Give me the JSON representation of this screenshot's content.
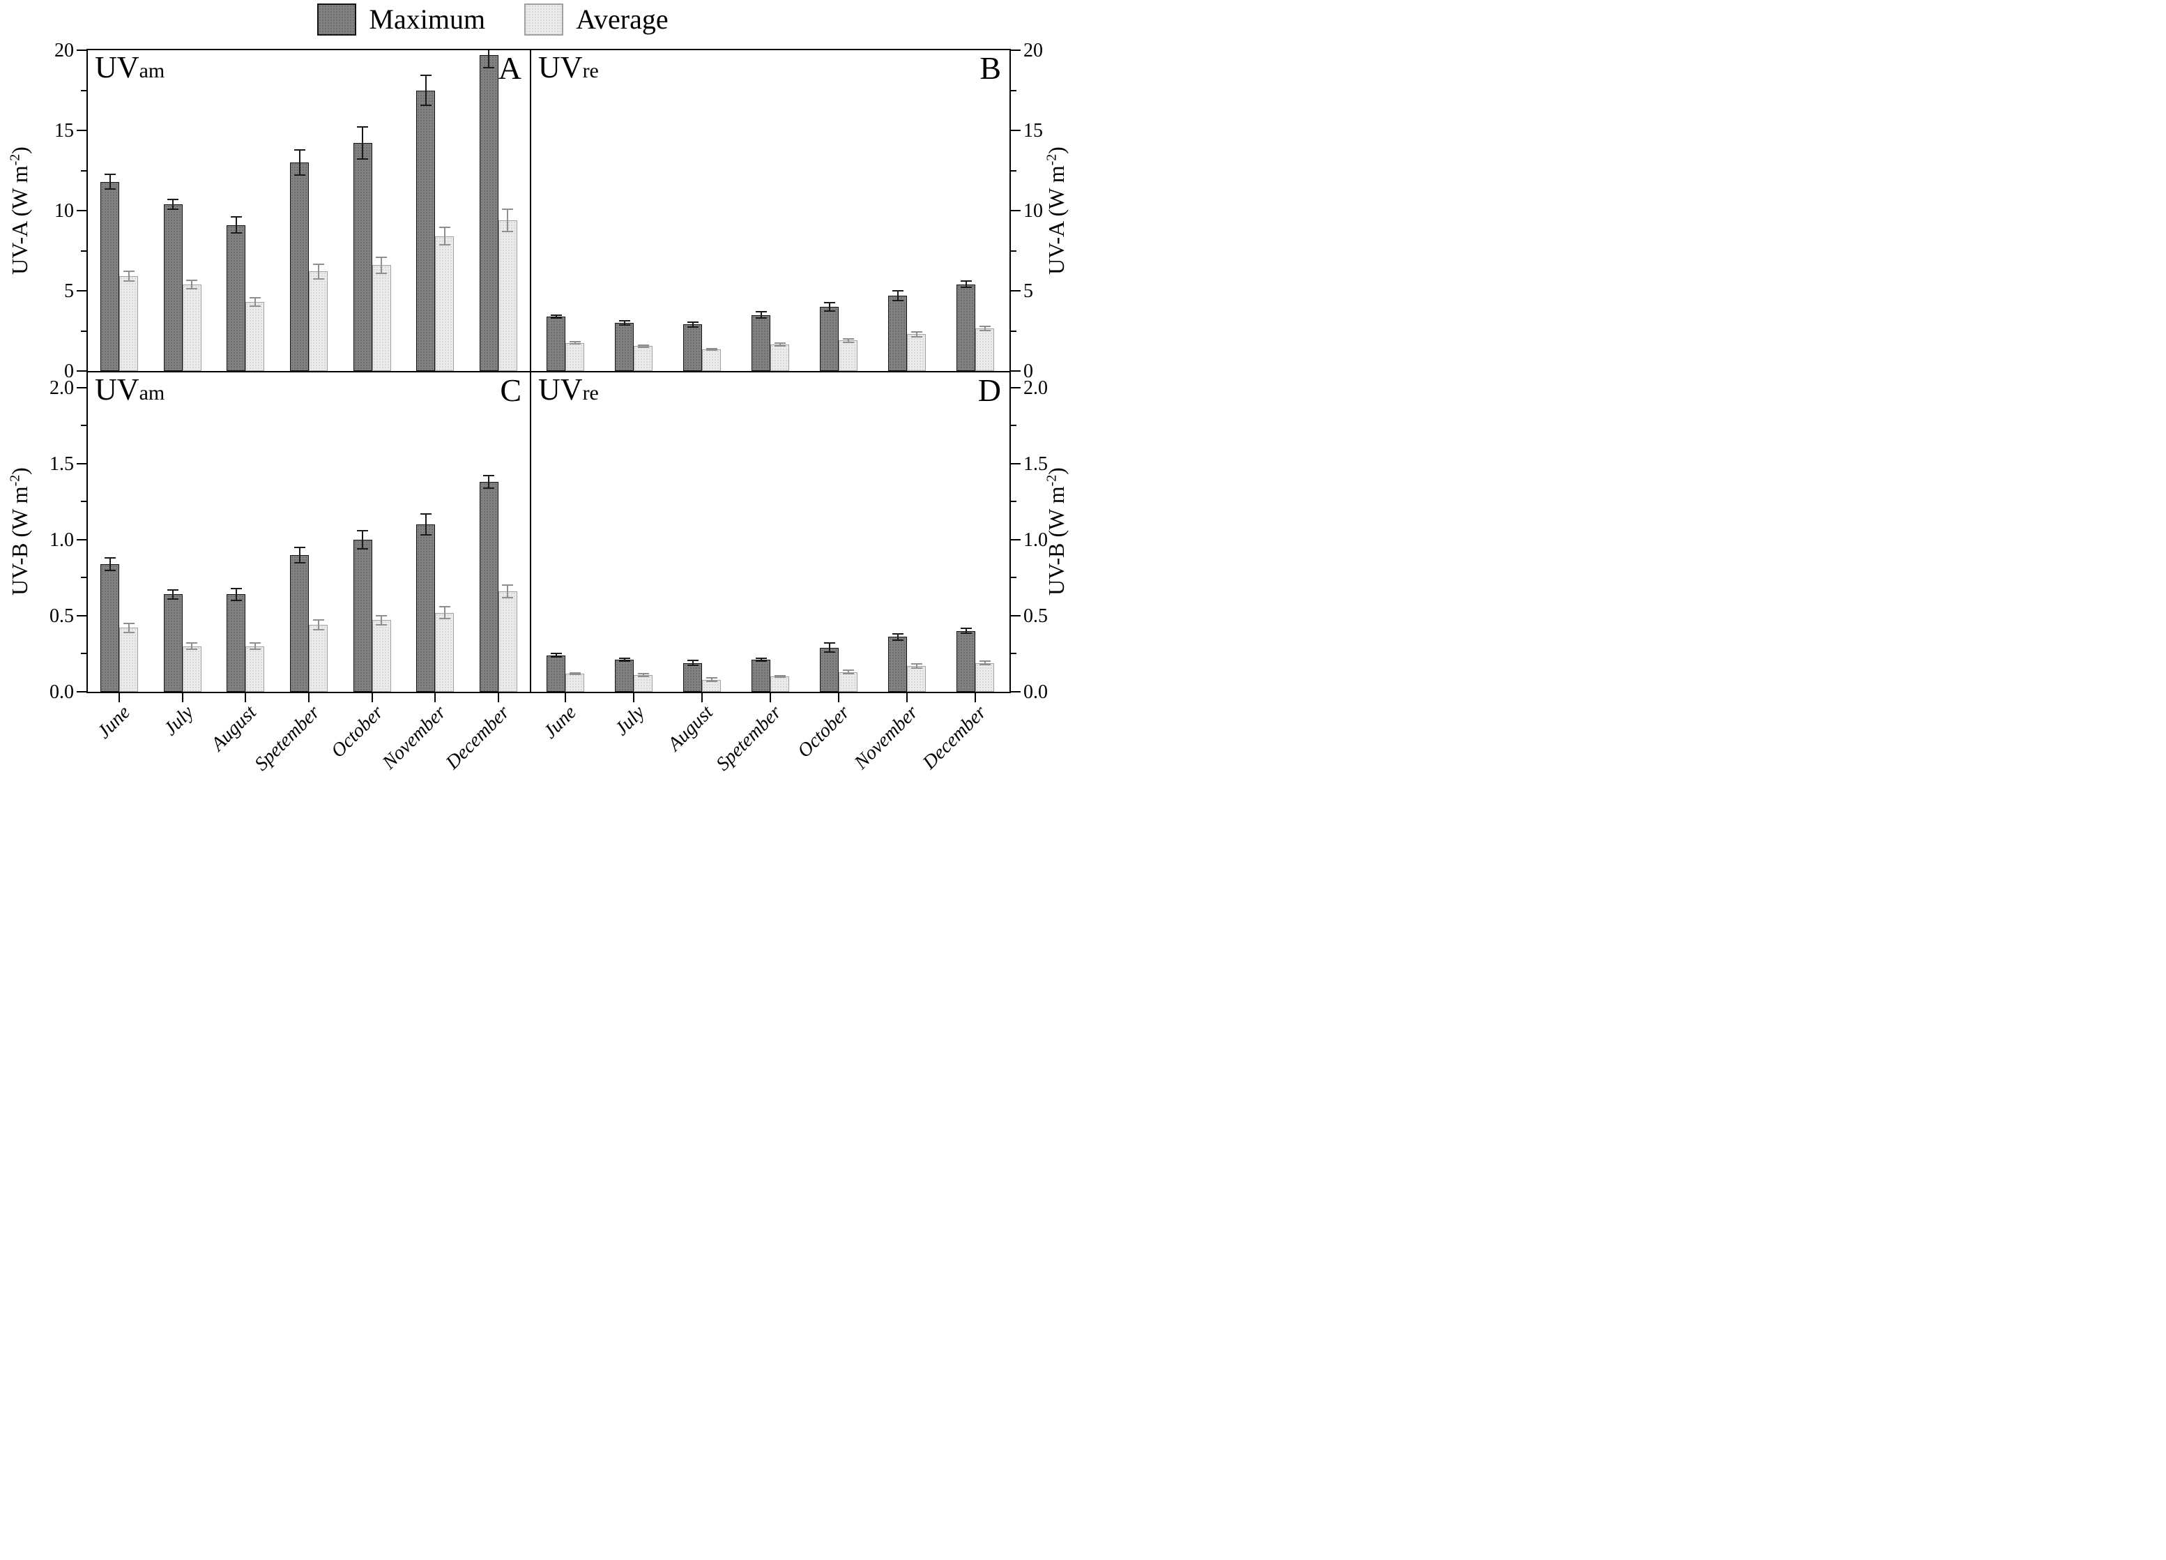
{
  "legend": {
    "items": [
      {
        "label": "Maximum",
        "swatch": "dark-gray"
      },
      {
        "label": "Average",
        "swatch": "light-gray"
      }
    ]
  },
  "colors": {
    "maximum_fill": "#828282",
    "maximum_border": "#121212",
    "average_fill": "#ebebeb",
    "average_border": "#a0a0a0",
    "frame": "#000000",
    "error_bar_dark": "#1a1a1a",
    "error_bar_light": "#8f8f8f"
  },
  "axis_titles": {
    "uva": {
      "pre": "UV-A (W m",
      "sup": "-2",
      "post": ")"
    },
    "uvb": {
      "pre": "UV-B (W m",
      "sup": "-2",
      "post": ")"
    }
  },
  "chart_data": [
    {
      "id": "A",
      "type": "bar",
      "position": "top-left",
      "panel_label": {
        "main": "UV",
        "sub": "am"
      },
      "corner_letter": "A",
      "ylabel": "UV-A (W m-2)",
      "categories": [
        "June",
        "July",
        "August",
        "Spetember",
        "October",
        "November",
        "December"
      ],
      "series": [
        {
          "name": "Maximum",
          "values": [
            11.8,
            10.4,
            9.1,
            13.0,
            14.2,
            17.5,
            19.7
          ],
          "errors": [
            0.45,
            0.3,
            0.5,
            0.8,
            1.0,
            0.95,
            0.8
          ]
        },
        {
          "name": "Average",
          "values": [
            5.9,
            5.4,
            4.3,
            6.2,
            6.6,
            8.4,
            9.4
          ],
          "errors": [
            0.3,
            0.25,
            0.25,
            0.45,
            0.5,
            0.55,
            0.7
          ]
        }
      ],
      "axis": {
        "ymin": 0,
        "ymax": 20,
        "frame_max": 20,
        "major_ticks": [
          0,
          5,
          10,
          15,
          20
        ],
        "major_labels": [
          "0",
          "5",
          "10",
          "15",
          "20"
        ],
        "minor_ticks": [
          2.5,
          7.5,
          12.5,
          17.5
        ],
        "label_side": "left",
        "grid": false
      }
    },
    {
      "id": "B",
      "type": "bar",
      "position": "top-right",
      "panel_label": {
        "main": "UV",
        "sub": "re"
      },
      "corner_letter": "B",
      "ylabel": "UV-A (W m-2)",
      "categories": [
        "June",
        "July",
        "August",
        "Spetember",
        "October",
        "November",
        "December"
      ],
      "series": [
        {
          "name": "Maximum",
          "values": [
            3.4,
            3.0,
            2.9,
            3.5,
            4.0,
            4.7,
            5.4
          ],
          "errors": [
            0.1,
            0.12,
            0.15,
            0.2,
            0.28,
            0.3,
            0.2
          ]
        },
        {
          "name": "Average",
          "values": [
            1.75,
            1.55,
            1.35,
            1.65,
            1.9,
            2.3,
            2.65
          ],
          "errors": [
            0.07,
            0.08,
            0.05,
            0.1,
            0.12,
            0.15,
            0.12
          ]
        }
      ],
      "axis": {
        "ymin": 0,
        "ymax": 20,
        "frame_max": 20,
        "major_ticks": [
          0,
          5,
          10,
          15,
          20
        ],
        "major_labels": [
          "0",
          "5",
          "10",
          "15",
          "20"
        ],
        "minor_ticks": [
          2.5,
          7.5,
          12.5,
          17.5
        ],
        "label_side": "right",
        "grid": false
      }
    },
    {
      "id": "C",
      "type": "bar",
      "position": "bottom-left",
      "panel_label": {
        "main": "UV",
        "sub": "am"
      },
      "corner_letter": "C",
      "ylabel": "UV-B (W m-2)",
      "categories": [
        "June",
        "July",
        "August",
        "Spetember",
        "October",
        "November",
        "December"
      ],
      "series": [
        {
          "name": "Maximum",
          "values": [
            0.84,
            0.64,
            0.64,
            0.9,
            1.0,
            1.1,
            1.38
          ],
          "errors": [
            0.04,
            0.03,
            0.04,
            0.05,
            0.06,
            0.07,
            0.04
          ]
        },
        {
          "name": "Average",
          "values": [
            0.42,
            0.3,
            0.3,
            0.44,
            0.47,
            0.52,
            0.66
          ],
          "errors": [
            0.03,
            0.02,
            0.02,
            0.03,
            0.03,
            0.04,
            0.04
          ]
        }
      ],
      "axis": {
        "ymin": 0,
        "ymax": 2.0,
        "frame_max": 2.1,
        "major_ticks": [
          0,
          0.5,
          1.0,
          1.5,
          2.0
        ],
        "major_labels": [
          "0.0",
          "0.5",
          "1.0",
          "1.5",
          "2.0"
        ],
        "minor_ticks": [
          0.25,
          0.75,
          1.25,
          1.75
        ],
        "label_side": "left",
        "grid": false
      }
    },
    {
      "id": "D",
      "type": "bar",
      "position": "bottom-right",
      "panel_label": {
        "main": "UV",
        "sub": "re"
      },
      "corner_letter": "D",
      "ylabel": "UV-B (W m-2)",
      "categories": [
        "June",
        "July",
        "August",
        "Spetember",
        "October",
        "November",
        "December"
      ],
      "series": [
        {
          "name": "Maximum",
          "values": [
            0.24,
            0.21,
            0.19,
            0.21,
            0.29,
            0.36,
            0.4
          ],
          "errors": [
            0.01,
            0.01,
            0.015,
            0.01,
            0.03,
            0.02,
            0.015
          ]
        },
        {
          "name": "Average",
          "values": [
            0.12,
            0.11,
            0.08,
            0.1,
            0.13,
            0.17,
            0.19
          ],
          "errors": [
            0.005,
            0.008,
            0.01,
            0.005,
            0.012,
            0.015,
            0.01
          ]
        }
      ],
      "axis": {
        "ymin": 0,
        "ymax": 2.0,
        "frame_max": 2.1,
        "major_ticks": [
          0,
          0.5,
          1.0,
          1.5,
          2.0
        ],
        "major_labels": [
          "0.0",
          "0.5",
          "1.0",
          "1.5",
          "2.0"
        ],
        "minor_ticks": [
          0.25,
          0.75,
          1.25,
          1.75
        ],
        "label_side": "right",
        "grid": false
      }
    }
  ]
}
